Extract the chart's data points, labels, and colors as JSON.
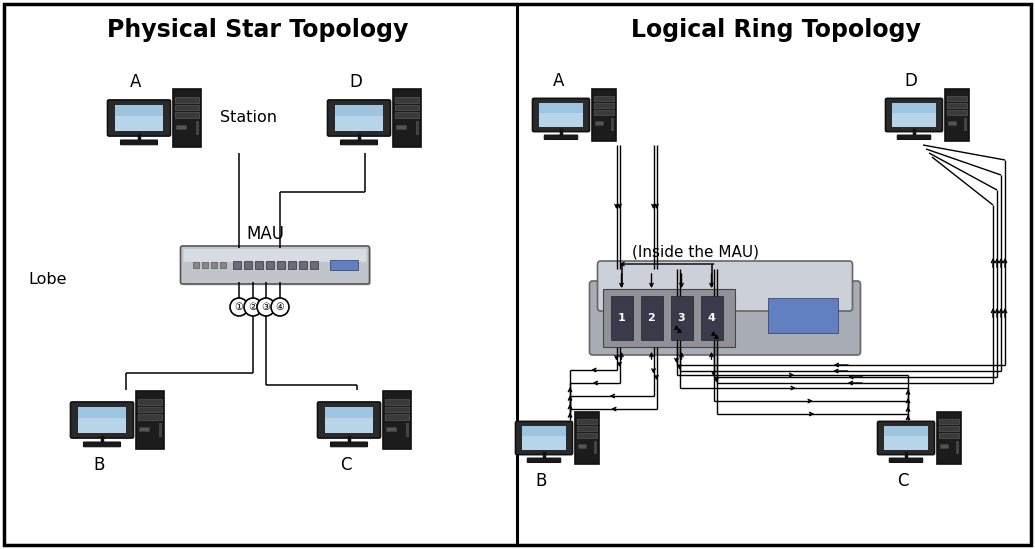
{
  "title_left": "Physical Star Topology",
  "title_right": "Logical Ring Topology",
  "title_fontsize": 17,
  "bg_color": "#ffffff",
  "mon_light": "#b8d4ea",
  "mon_mid": "#8ab8d8",
  "mon_dark": "#5090b8",
  "mau_label": "MAU",
  "inside_mau_label": "(Inside the MAU)",
  "station_label": "Station",
  "lobe_label": "Lobe",
  "port_labels": [
    "1",
    "2",
    "3",
    "4"
  ],
  "mau_body": "#c8cdd4",
  "mau_front": "#b0b5bc",
  "mau_shadow": "#909498",
  "mau_led": "#6080c0",
  "mau_port_dark": "#3a3a3a",
  "arrow_lw": 1.0,
  "arrow_ms": 7
}
